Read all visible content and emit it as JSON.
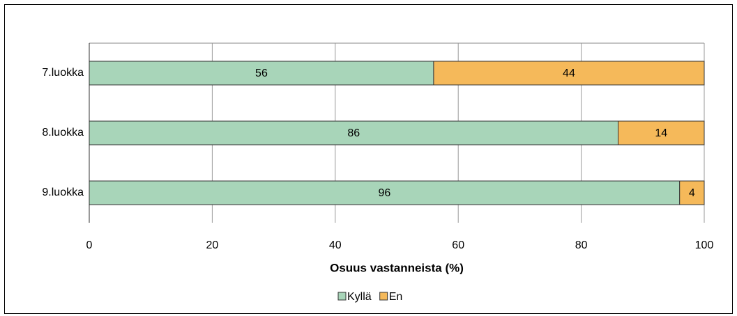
{
  "chart_data": {
    "type": "bar",
    "orientation": "horizontal",
    "stacked": true,
    "categories": [
      "7.luokka",
      "8.luokka",
      "9.luokka"
    ],
    "series": [
      {
        "name": "Kyllä",
        "color": "#a8d5b9",
        "values": [
          56,
          86,
          96
        ]
      },
      {
        "name": "En",
        "color": "#f5b95a",
        "values": [
          44,
          14,
          4
        ]
      }
    ],
    "x_label": "Osuus vastanneista (%)",
    "xlim": [
      0,
      100
    ],
    "xticks": [
      0,
      20,
      40,
      60,
      80,
      100
    ],
    "grid": true,
    "legend": "bottom"
  }
}
